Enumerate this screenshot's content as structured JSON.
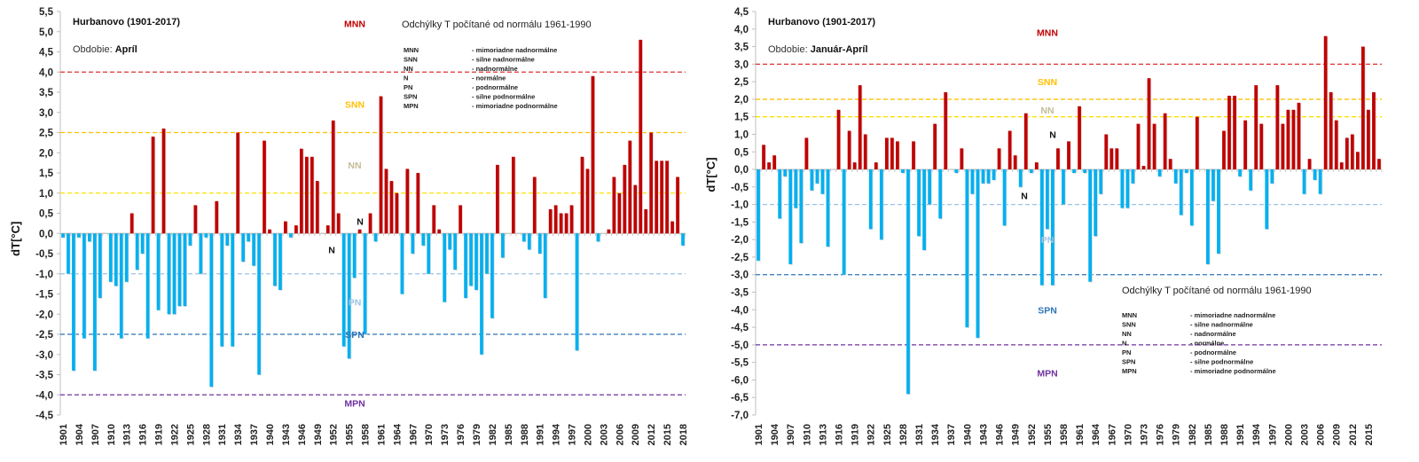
{
  "chart_data": [
    {
      "type": "bar",
      "id": "april",
      "station_title": "Hurbanovo (1901-2017)",
      "period_label": "Obdobie: ",
      "period_value": "Apríl",
      "note": "Odchýlky T počítané od normálu 1961-1990",
      "ylabel": "dT[°C]",
      "ylim": [
        -4.5,
        5.5
      ],
      "ytick_step": 0.5,
      "yticks": [
        "-4,5",
        "-4,0",
        "-3,5",
        "-3,0",
        "-2,5",
        "-2,0",
        "-1,5",
        "-1,0",
        "-0,5",
        "0,0",
        "0,5",
        "1,0",
        "1,5",
        "2,0",
        "2,5",
        "3,0",
        "3,5",
        "4,0",
        "4,5",
        "5,0",
        "5,5"
      ],
      "x_start": 1901,
      "x_end": 2017,
      "xtick_every": 3,
      "legend_position": "top-right",
      "thresholds": [
        {
          "value": 4.0,
          "color": "#e03030"
        },
        {
          "value": 2.5,
          "color": "#ffc000"
        },
        {
          "value": 1.0,
          "color": "#ffe000"
        },
        {
          "value": -1.0,
          "color": "#9dc3e6"
        },
        {
          "value": -2.5,
          "color": "#2e75b6"
        },
        {
          "value": -4.0,
          "color": "#7030a0"
        }
      ],
      "categories": [
        {
          "label": "MNN",
          "y": 5.2,
          "color": "#c00000"
        },
        {
          "label": "SNN",
          "y": 3.2,
          "color": "#ffc000"
        },
        {
          "label": "NN",
          "y": 1.7,
          "color": "#c4bd97"
        },
        {
          "label": "N",
          "y": 0.3,
          "color": "#111111"
        },
        {
          "label": "N",
          "y": -0.4,
          "color": "#111111"
        },
        {
          "label": "PN",
          "y": -1.7,
          "color": "#9dc3e6"
        },
        {
          "label": "SPN",
          "y": -2.5,
          "color": "#2e75b6"
        },
        {
          "label": "MPN",
          "y": -4.2,
          "color": "#7030a0"
        }
      ],
      "values": [
        -0.1,
        -1.0,
        -3.4,
        -0.1,
        -2.6,
        -0.2,
        -3.4,
        -1.6,
        0.0,
        -1.2,
        -1.3,
        -2.6,
        -1.2,
        0.5,
        -0.9,
        -0.5,
        -2.6,
        2.4,
        -1.9,
        2.6,
        -2.0,
        -2.0,
        -1.8,
        -1.8,
        -0.3,
        0.7,
        -1.0,
        -0.1,
        -3.8,
        0.8,
        -2.8,
        -0.3,
        -2.8,
        2.5,
        -0.7,
        -0.2,
        -0.8,
        -3.5,
        2.3,
        0.1,
        -1.3,
        -1.4,
        0.3,
        -0.1,
        0.2,
        2.1,
        1.9,
        1.9,
        1.3,
        0.0,
        0.2,
        2.8,
        0.5,
        -2.8,
        -3.1,
        -1.1,
        0.1,
        -2.5,
        0.5,
        -0.2,
        3.4,
        1.6,
        1.3,
        1.0,
        -1.5,
        1.6,
        -0.5,
        1.5,
        -0.3,
        -1.0,
        0.7,
        0.1,
        -1.7,
        -0.4,
        -0.9,
        0.7,
        -1.6,
        -1.3,
        -1.4,
        -3.0,
        -1.0,
        -2.1,
        1.7,
        -0.6,
        0.0,
        1.9,
        0.0,
        -0.2,
        -0.4,
        1.4,
        -0.5,
        -1.6,
        0.6,
        0.7,
        0.5,
        0.5,
        0.7,
        -2.9,
        1.9,
        1.6,
        3.9,
        -0.2,
        0.0,
        0.1,
        1.4,
        1.0,
        1.7,
        2.3,
        1.2,
        4.8,
        0.6,
        2.5,
        1.8,
        1.8,
        1.8,
        0.3,
        1.4,
        -0.3
      ],
      "bar_colors": {
        "positive": "#c00000",
        "negative": "#00b0f0"
      }
    },
    {
      "type": "bar",
      "id": "jan-apr",
      "station_title": "Hurbanovo (1901-2017)",
      "period_label": "Obdobie: ",
      "period_value": "Január-Apríl",
      "note": "Odchýlky T počítané od normálu 1961-1990",
      "ylabel": "dT[°C]",
      "ylim": [
        -7.0,
        4.5
      ],
      "ytick_step": 0.5,
      "yticks": [
        "-7,0",
        "-6,5",
        "-6,0",
        "-5,5",
        "-5,0",
        "-4,5",
        "-4,0",
        "-3,5",
        "-3,0",
        "-2,5",
        "-2,0",
        "-1,5",
        "-1,0",
        "-0,5",
        "0,0",
        "0,5",
        "1,0",
        "1,5",
        "2,0",
        "2,5",
        "3,0",
        "3,5",
        "4,0",
        "4,5"
      ],
      "x_start": 1901,
      "x_end": 2017,
      "xtick_every": 3,
      "legend_position": "bottom-right",
      "thresholds": [
        {
          "value": 3.0,
          "color": "#e03030"
        },
        {
          "value": 2.0,
          "color": "#ffc000"
        },
        {
          "value": 1.5,
          "color": "#ffe000"
        },
        {
          "value": -1.0,
          "color": "#9dc3e6"
        },
        {
          "value": -3.0,
          "color": "#2e75b6"
        },
        {
          "value": -5.0,
          "color": "#7030a0"
        }
      ],
      "categories": [
        {
          "label": "MNN",
          "y": 3.9,
          "color": "#c00000"
        },
        {
          "label": "SNN",
          "y": 2.5,
          "color": "#ffc000"
        },
        {
          "label": "NN",
          "y": 1.7,
          "color": "#c4bd97"
        },
        {
          "label": "N",
          "y": 1.0,
          "color": "#111111"
        },
        {
          "label": "N",
          "y": -0.75,
          "color": "#111111"
        },
        {
          "label": "PN",
          "y": -2.0,
          "color": "#9dc3e6"
        },
        {
          "label": "SPN",
          "y": -4.0,
          "color": "#2e75b6"
        },
        {
          "label": "MPN",
          "y": -5.8,
          "color": "#7030a0"
        }
      ],
      "values": [
        -2.6,
        0.7,
        0.2,
        0.4,
        -1.4,
        -0.2,
        -2.7,
        -1.1,
        -2.1,
        0.9,
        -0.6,
        -0.4,
        -0.7,
        -2.2,
        0.0,
        1.7,
        -3.0,
        1.1,
        0.2,
        2.4,
        1.0,
        -1.7,
        0.2,
        -2.0,
        0.9,
        0.9,
        0.8,
        -0.1,
        -6.4,
        0.8,
        -1.9,
        -2.3,
        -1.0,
        1.3,
        -1.4,
        2.2,
        0.0,
        -0.1,
        0.6,
        -4.5,
        -0.7,
        -4.8,
        -0.4,
        -0.4,
        -0.3,
        0.6,
        -1.6,
        1.1,
        0.4,
        -0.5,
        1.6,
        -0.1,
        0.2,
        -3.3,
        -1.7,
        -3.3,
        0.6,
        -1.0,
        0.8,
        -0.1,
        1.8,
        -0.1,
        -3.2,
        -1.9,
        -0.7,
        1.0,
        0.6,
        0.6,
        -1.1,
        -1.1,
        -0.4,
        1.3,
        0.1,
        2.6,
        1.3,
        -0.2,
        1.6,
        0.3,
        -0.4,
        -1.3,
        -0.1,
        -1.6,
        1.5,
        0.0,
        -2.7,
        -0.9,
        -2.4,
        1.1,
        2.1,
        2.1,
        -0.2,
        1.4,
        -0.6,
        2.4,
        1.3,
        -1.7,
        -0.4,
        2.4,
        1.3,
        1.7,
        1.7,
        1.9,
        -0.7,
        0.3,
        -0.3,
        -0.7,
        3.8,
        2.2,
        1.4,
        0.2,
        0.9,
        1.0,
        0.5,
        3.5,
        1.7,
        2.2,
        0.3
      ],
      "bar_colors": {
        "positive": "#c00000",
        "negative": "#00b0f0"
      }
    }
  ],
  "legend": [
    {
      "code": "MNN",
      "desc": "- mimoriadne nadnormálne"
    },
    {
      "code": "SNN",
      "desc": "- silne nadnormálne"
    },
    {
      "code": "NN",
      "desc": "- nadnormálne"
    },
    {
      "code": "N",
      "desc": "- normálne"
    },
    {
      "code": "PN",
      "desc": "- podnormálne"
    },
    {
      "code": "SPN",
      "desc": "- silne podnormálne"
    },
    {
      "code": "MPN",
      "desc": "- mimoriadne podnormálne"
    }
  ]
}
